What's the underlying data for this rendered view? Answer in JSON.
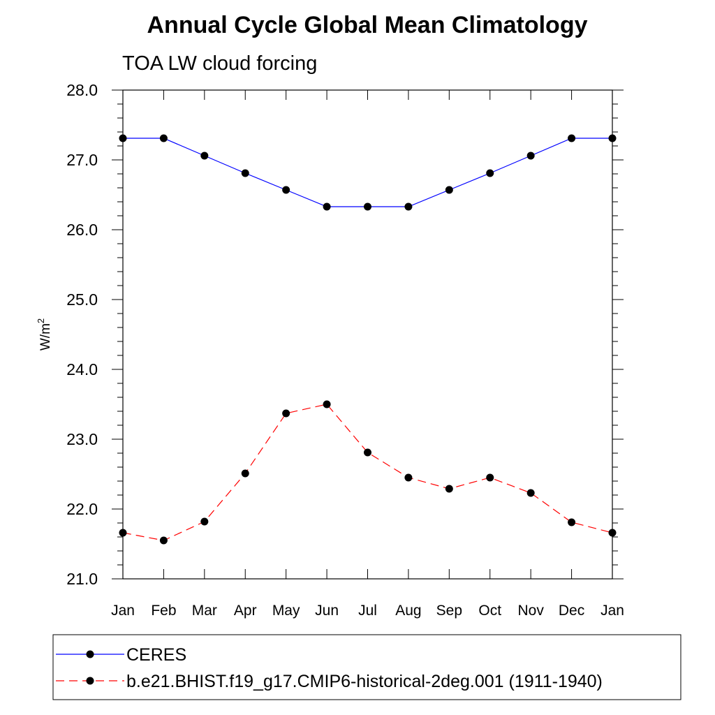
{
  "chart_data": {
    "type": "line",
    "title": "Annual Cycle Global Mean Climatology",
    "subtitle": "TOA LW cloud forcing",
    "ylabel": "W/m",
    "ylabel_superscript": "2",
    "xlabel": "",
    "categories": [
      "Jan",
      "Feb",
      "Mar",
      "Apr",
      "May",
      "Jun",
      "Jul",
      "Aug",
      "Sep",
      "Oct",
      "Nov",
      "Dec",
      "Jan"
    ],
    "ylim": [
      21.0,
      28.0
    ],
    "yticks": [
      "21.0",
      "22.0",
      "23.0",
      "24.0",
      "25.0",
      "26.0",
      "27.0",
      "28.0"
    ],
    "grid": false,
    "legend_position": "bottom",
    "series": [
      {
        "name": "CERES",
        "color": "#0000ff",
        "dash": "solid",
        "marker": "circle",
        "values": [
          27.31,
          27.31,
          27.06,
          26.81,
          26.57,
          26.33,
          26.33,
          26.33,
          26.57,
          26.81,
          27.06,
          27.31,
          27.31
        ]
      },
      {
        "name": "b.e21.BHIST.f19_g17.CMIP6-historical-2deg.001 (1911-1940)",
        "color": "#ff0000",
        "dash": "dashed",
        "marker": "circle",
        "values": [
          21.66,
          21.55,
          21.82,
          22.51,
          23.37,
          23.5,
          22.81,
          22.45,
          22.29,
          22.45,
          22.23,
          21.81,
          21.66
        ]
      }
    ]
  }
}
